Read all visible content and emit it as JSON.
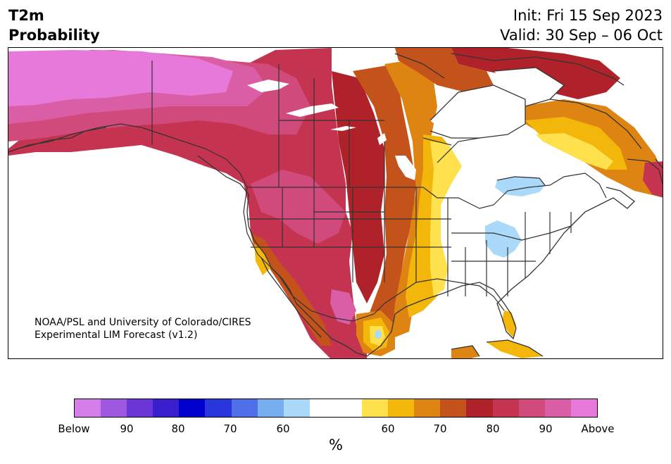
{
  "header": {
    "title_line1": "T2m",
    "title_line2": "Probability",
    "init": "Init: Fri 15 Sep 2023",
    "valid": "Valid: 30 Sep – 06 Oct"
  },
  "credit": {
    "line1": "NOAA/PSL and University of Colorado/CIRES",
    "line2": "Experimental LIM Forecast (v1.2)"
  },
  "colorbar": {
    "colors": [
      "#d57ee9",
      "#9f59e1",
      "#6b36d6",
      "#3a1fcf",
      "#0000cc",
      "#2836dc",
      "#4f70e8",
      "#76aef0",
      "#abd9fa",
      "#ffffff",
      "#ffffff",
      "#ffe14d",
      "#f3b70c",
      "#de8412",
      "#c4531b",
      "#b0222a",
      "#c4334f",
      "#d14a7c",
      "#da5ea6",
      "#e679da"
    ],
    "tick_labels": [
      "Below",
      "90",
      "80",
      "70",
      "60",
      "60",
      "70",
      "80",
      "90",
      "Above"
    ],
    "unit": "%"
  },
  "map": {
    "palette": {
      "above": "#e679da",
      "p90": "#da5ea6",
      "p85": "#d14a7c",
      "p80": "#c4334f",
      "p75": "#b0222a",
      "p70": "#c4531b",
      "p65": "#de8412",
      "p60": "#f3b70c",
      "p55": "#ffe14d",
      "neutral": "#ffffff",
      "below55": "#abd9fa",
      "border": "#333333"
    }
  }
}
